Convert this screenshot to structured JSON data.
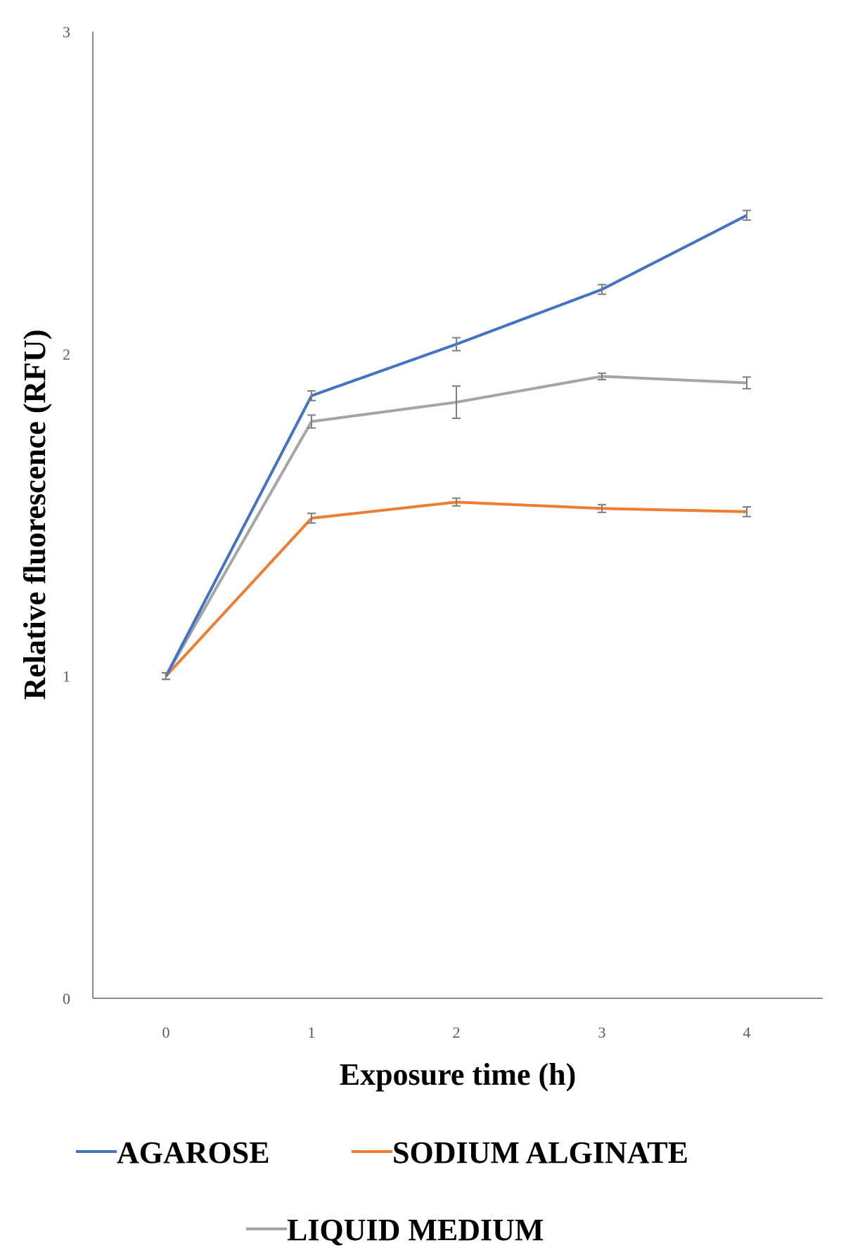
{
  "chart_data": {
    "type": "line",
    "title": "",
    "xlabel": "Exposure time (h)",
    "ylabel": "Relative fluorescence (RFU)",
    "x": [
      0,
      1,
      2,
      3,
      4
    ],
    "xticks": [
      "0",
      "1",
      "2",
      "3",
      "4"
    ],
    "yticks": [
      "0",
      "1",
      "2",
      "3"
    ],
    "ylim": [
      0,
      3
    ],
    "grid": false,
    "legend_position": "bottom",
    "series": [
      {
        "name": "AGAROSE",
        "color": "#4472C4",
        "values": [
          1.0,
          1.87,
          2.03,
          2.2,
          2.43
        ],
        "errors": [
          0.01,
          0.015,
          0.02,
          0.015,
          0.015
        ]
      },
      {
        "name": "SODIUM ALGINATE",
        "color": "#ED7D31",
        "values": [
          1.0,
          1.49,
          1.54,
          1.52,
          1.51
        ],
        "errors": [
          0.01,
          0.015,
          0.012,
          0.012,
          0.015
        ]
      },
      {
        "name": "LIQUID MEDIUM",
        "color": "#A5A5A5",
        "values": [
          1.0,
          1.79,
          1.85,
          1.93,
          1.91
        ],
        "errors": [
          0.01,
          0.02,
          0.05,
          0.01,
          0.018
        ]
      }
    ]
  }
}
